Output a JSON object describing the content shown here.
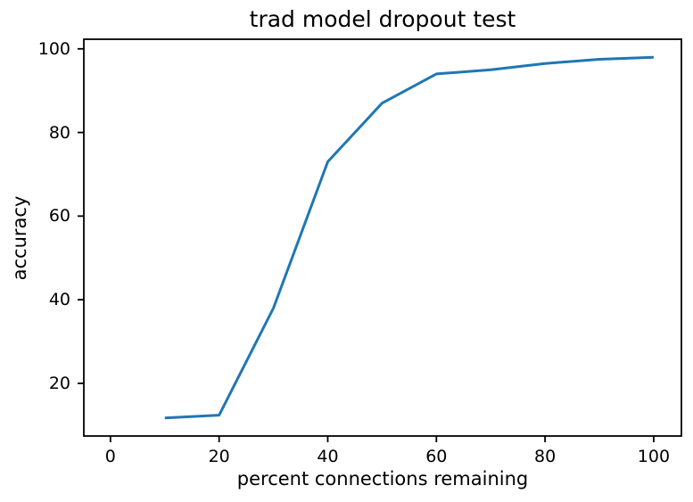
{
  "figure": {
    "background": "#ffffff",
    "text_color": "#000000"
  },
  "chart_data": {
    "type": "line",
    "title": "trad model dropout test",
    "xlabel": "percent connections remaining",
    "ylabel": "accuracy",
    "x": [
      10,
      20,
      30,
      40,
      50,
      60,
      70,
      80,
      90,
      100
    ],
    "y": [
      11.7,
      12.4,
      38,
      73,
      87,
      94,
      95,
      96.5,
      97.5,
      98
    ],
    "xticks": [
      0,
      20,
      40,
      60,
      80,
      100
    ],
    "yticks": [
      20,
      40,
      60,
      80,
      100
    ],
    "xlim": [
      -4.9,
      105.1
    ],
    "ylim": [
      7.4,
      102.3
    ],
    "line_color": "#1f77b4",
    "axis_color": "#000000",
    "grid": false,
    "legend": null
  }
}
